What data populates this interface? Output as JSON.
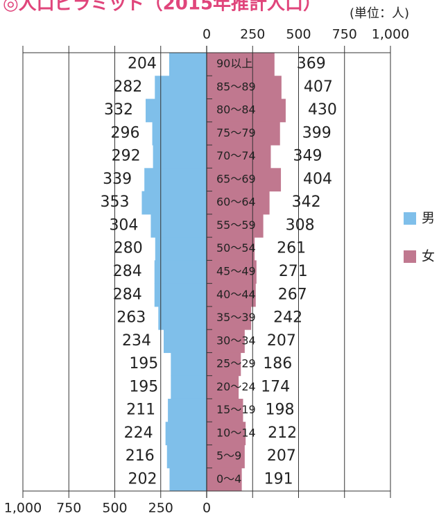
{
  "chart_data": {
    "type": "pyramid",
    "title": "◎人口ピラミッド（2015年推計人口）",
    "unit": "(単位：人)",
    "categories": [
      "90以上",
      "85～89",
      "80～84",
      "75～79",
      "70～74",
      "65～69",
      "60～64",
      "55～59",
      "50～54",
      "45～49",
      "40～44",
      "35～39",
      "30～34",
      "25～29",
      "20～24",
      "15～19",
      "10～14",
      "5～9",
      "0～4"
    ],
    "series": [
      {
        "name": "男",
        "color": "#7fbfea",
        "values": [
          204,
          282,
          332,
          296,
          292,
          339,
          353,
          304,
          280,
          284,
          284,
          263,
          234,
          195,
          195,
          211,
          224,
          216,
          202
        ]
      },
      {
        "name": "女",
        "color": "#c0788f",
        "values": [
          369,
          407,
          430,
          399,
          349,
          404,
          342,
          308,
          261,
          271,
          267,
          242,
          207,
          186,
          174,
          198,
          212,
          207,
          191
        ]
      }
    ],
    "xlim": [
      0,
      1000
    ],
    "xticks": [
      0,
      250,
      500,
      750,
      {
        "value": 1000,
        "label": "1,000"
      }
    ]
  }
}
